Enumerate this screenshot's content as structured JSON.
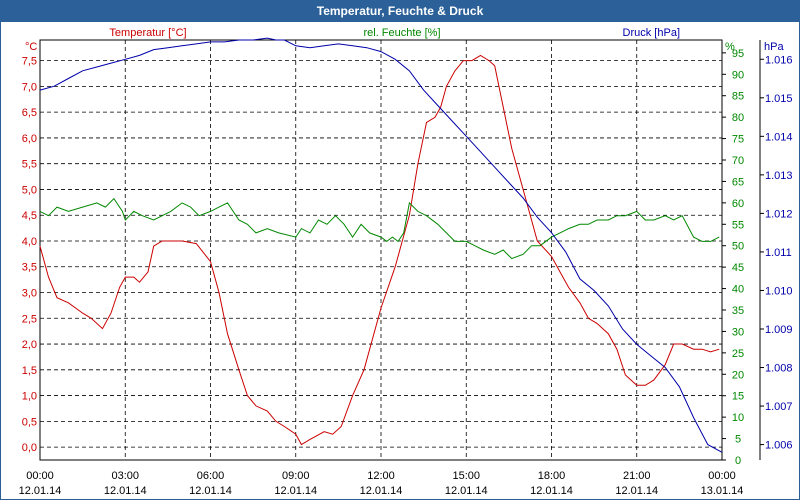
{
  "window": {
    "title": "Temperatur, Feuchte & Druck"
  },
  "chart_data": {
    "type": "line",
    "title": "Temperatur, Feuchte & Druck",
    "colors": {
      "temperature": "#cc0000",
      "humidity": "#008800",
      "pressure": "#0000aa",
      "title_bar": "#2b6099"
    },
    "axes": {
      "temperature": {
        "label": "Temperatur [°C]",
        "unit": "°C",
        "range": [
          -0.25,
          7.9
        ],
        "ticks": [
          "0,0",
          "0,5",
          "1,0",
          "1,5",
          "2,0",
          "2,5",
          "3,0",
          "3,5",
          "4,0",
          "4,5",
          "5,0",
          "5,5",
          "6,0",
          "6,5",
          "7,0",
          "7,5"
        ],
        "tick_values": [
          0,
          0.5,
          1,
          1.5,
          2,
          2.5,
          3,
          3.5,
          4,
          4.5,
          5,
          5.5,
          6,
          6.5,
          7,
          7.5
        ]
      },
      "humidity": {
        "label": "rel. Feuchte [%]",
        "unit": "%",
        "range": [
          0,
          98
        ],
        "ticks": [
          "0",
          "5",
          "10",
          "15",
          "20",
          "25",
          "30",
          "35",
          "40",
          "45",
          "50",
          "55",
          "60",
          "65",
          "70",
          "75",
          "80",
          "85",
          "90",
          "95"
        ],
        "tick_values": [
          0,
          5,
          10,
          15,
          20,
          25,
          30,
          35,
          40,
          45,
          50,
          55,
          60,
          65,
          70,
          75,
          80,
          85,
          90,
          95
        ]
      },
      "pressure": {
        "label": "Druck [hPa]",
        "unit": "hPa",
        "range": [
          1005.6,
          1016.5
        ],
        "ticks": [
          "1.006",
          "1.007",
          "1.008",
          "1.009",
          "1.010",
          "1.011",
          "1.012",
          "1.013",
          "1.014",
          "1.015",
          "1.016"
        ],
        "tick_values": [
          1006,
          1007,
          1008,
          1009,
          1010,
          1011,
          1012,
          1013,
          1014,
          1015,
          1016
        ]
      }
    },
    "x_ticks": [
      {
        "time": "00:00",
        "date": "12.01.14",
        "hour": 0
      },
      {
        "time": "03:00",
        "date": "12.01.14",
        "hour": 3
      },
      {
        "time": "06:00",
        "date": "12.01.14",
        "hour": 6
      },
      {
        "time": "09:00",
        "date": "12.01.14",
        "hour": 9
      },
      {
        "time": "12:00",
        "date": "12.01.14",
        "hour": 12
      },
      {
        "time": "15:00",
        "date": "12.01.14",
        "hour": 15
      },
      {
        "time": "18:00",
        "date": "12.01.14",
        "hour": 18
      },
      {
        "time": "21:00",
        "date": "12.01.14",
        "hour": 21
      },
      {
        "time": "00:00",
        "date": "13.01.14",
        "hour": 24
      }
    ],
    "x_range": [
      0,
      24
    ],
    "grid": true,
    "series": [
      {
        "name": "Temperatur",
        "axis": "temperature",
        "x": [
          0,
          0.3,
          0.6,
          1,
          1.5,
          1.8,
          2.2,
          2.5,
          2.8,
          3,
          3.3,
          3.5,
          3.8,
          4,
          4.3,
          5,
          5.5,
          6,
          6.3,
          6.6,
          7,
          7.3,
          7.6,
          8,
          8.3,
          8.6,
          9,
          9.2,
          9.5,
          10,
          10.3,
          10.6,
          11,
          11.4,
          12,
          12.5,
          13,
          13.3,
          13.6,
          13.9,
          14.1,
          14.3,
          14.6,
          14.9,
          15.2,
          15.5,
          15.8,
          16,
          16.3,
          16.6,
          17,
          17.5,
          18,
          18.3,
          18.6,
          19,
          19.3,
          19.6,
          20,
          20.3,
          20.6,
          21,
          21.3,
          21.6,
          22,
          22.3,
          22.6,
          23,
          23.3,
          23.6,
          23.9
        ],
        "values": [
          3.9,
          3.3,
          2.9,
          2.8,
          2.6,
          2.5,
          2.3,
          2.6,
          3.1,
          3.3,
          3.3,
          3.2,
          3.4,
          3.9,
          4.0,
          4.0,
          3.95,
          3.6,
          3.0,
          2.2,
          1.5,
          1.0,
          0.8,
          0.7,
          0.5,
          0.4,
          0.25,
          0.05,
          0.15,
          0.3,
          0.25,
          0.4,
          1.0,
          1.5,
          2.7,
          3.5,
          4.5,
          5.5,
          6.3,
          6.4,
          6.6,
          7.0,
          7.3,
          7.5,
          7.5,
          7.6,
          7.5,
          7.4,
          6.6,
          5.8,
          5.0,
          4.0,
          3.7,
          3.4,
          3.1,
          2.8,
          2.5,
          2.4,
          2.2,
          1.9,
          1.4,
          1.2,
          1.2,
          1.3,
          1.6,
          2.0,
          2.0,
          1.9,
          1.9,
          1.85,
          1.9
        ]
      },
      {
        "name": "rel. Feuchte",
        "axis": "humidity",
        "x": [
          0,
          0.3,
          0.6,
          1,
          1.5,
          2,
          2.3,
          2.6,
          2.9,
          3,
          3.3,
          3.6,
          4,
          4.3,
          4.6,
          5,
          5.3,
          5.6,
          6,
          6.3,
          6.6,
          7,
          7.3,
          7.6,
          8,
          8.4,
          9,
          9.2,
          9.5,
          9.8,
          10.1,
          10.4,
          10.7,
          11,
          11.3,
          11.6,
          12,
          12.2,
          12.4,
          12.6,
          12.8,
          13,
          13.3,
          13.6,
          14,
          14.3,
          14.6,
          15,
          15.3,
          15.6,
          16,
          16.3,
          16.6,
          17,
          17.3,
          17.6,
          18,
          18.3,
          18.6,
          19,
          19.3,
          19.6,
          20,
          20.3,
          20.6,
          21,
          21.3,
          21.6,
          22,
          22.3,
          22.6,
          23,
          23.3,
          23.6,
          23.9
        ],
        "values": [
          58,
          57,
          59,
          58,
          59,
          60,
          59,
          61,
          58,
          56,
          58,
          57,
          56,
          57,
          58,
          60,
          59,
          57,
          58,
          59,
          60,
          56,
          55,
          53,
          54,
          53,
          52,
          54,
          53,
          56,
          55,
          57,
          55,
          52,
          55,
          53,
          52,
          51,
          52,
          51,
          53,
          60,
          58,
          57,
          55,
          53,
          51,
          51,
          50,
          49,
          48,
          49,
          47,
          48,
          50,
          50,
          52,
          53,
          54,
          55,
          55,
          56,
          56,
          57,
          57,
          58,
          56,
          56,
          57,
          56,
          57,
          52,
          51,
          51,
          52
        ]
      },
      {
        "name": "Druck",
        "axis": "pressure",
        "x": [
          0,
          0.5,
          1,
          1.5,
          2,
          2.5,
          3,
          3.5,
          4,
          4.5,
          5,
          5.5,
          6,
          6.5,
          7,
          7.5,
          8,
          8.3,
          8.6,
          9,
          9.5,
          10,
          10.5,
          11,
          11.5,
          12,
          12.5,
          13,
          13.5,
          14,
          14.5,
          15,
          15.5,
          16,
          16.5,
          17,
          17.5,
          18,
          18.5,
          19,
          19.5,
          20,
          20.5,
          21,
          21.5,
          22,
          22.5,
          23,
          23.5,
          24
        ],
        "values": [
          1015.2,
          1015.3,
          1015.5,
          1015.7,
          1015.8,
          1015.9,
          1016.0,
          1016.1,
          1016.25,
          1016.3,
          1016.35,
          1016.4,
          1016.45,
          1016.45,
          1016.5,
          1016.5,
          1016.55,
          1016.5,
          1016.5,
          1016.35,
          1016.3,
          1016.35,
          1016.4,
          1016.35,
          1016.3,
          1016.2,
          1016.0,
          1015.7,
          1015.2,
          1014.8,
          1014.4,
          1014.0,
          1013.6,
          1013.2,
          1012.8,
          1012.4,
          1011.9,
          1011.5,
          1011.0,
          1010.3,
          1010.0,
          1009.6,
          1009.0,
          1008.6,
          1008.3,
          1008.0,
          1007.5,
          1006.7,
          1006.0,
          1005.8
        ]
      }
    ]
  }
}
